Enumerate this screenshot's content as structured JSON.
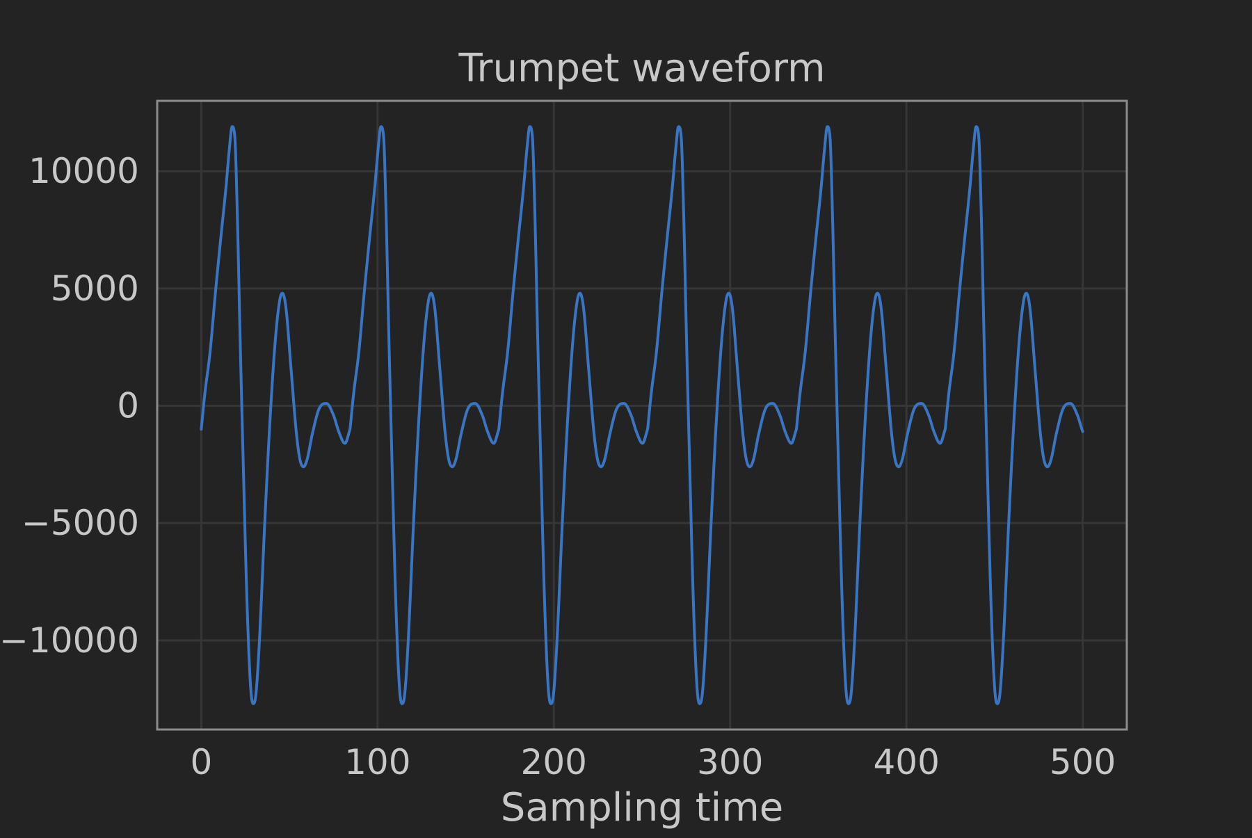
{
  "chart_data": {
    "type": "line",
    "title": "Trumpet waveform",
    "xlabel": "Sampling time",
    "ylabel": "",
    "xlim": [
      -25,
      525
    ],
    "ylim": [
      -13800,
      13000
    ],
    "grid": true,
    "legend": "none",
    "xticks": [
      0,
      100,
      200,
      300,
      400,
      500
    ],
    "yticks": [
      10000,
      5000,
      0,
      -5000,
      -10000
    ],
    "colors": {
      "background": "#232323",
      "frame": "#8c8c8c",
      "grid": "#363636",
      "text": "#c8c8c8",
      "line": "#3a75c4"
    },
    "series": [
      {
        "period": 84.4,
        "x_start": 0,
        "x_end": 500,
        "keypoints": [
          [
            0,
            -1000
          ],
          [
            2,
            500
          ],
          [
            5,
            2300
          ],
          [
            8,
            4800
          ],
          [
            11,
            7100
          ],
          [
            14,
            9300
          ],
          [
            16,
            11000
          ],
          [
            17.5,
            11900
          ],
          [
            19,
            11500
          ],
          [
            20.5,
            8000
          ],
          [
            22,
            3000
          ],
          [
            24,
            -3000
          ],
          [
            26,
            -8500
          ],
          [
            28,
            -12000
          ],
          [
            29.5,
            -12700
          ],
          [
            31,
            -12300
          ],
          [
            33,
            -10000
          ],
          [
            36,
            -5000
          ],
          [
            39,
            -600
          ],
          [
            42,
            2800
          ],
          [
            44.5,
            4500
          ],
          [
            46,
            4800
          ],
          [
            48,
            4200
          ],
          [
            51,
            1500
          ],
          [
            54,
            -1200
          ],
          [
            56,
            -2300
          ],
          [
            58,
            -2600
          ],
          [
            60,
            -2300
          ],
          [
            63,
            -1200
          ],
          [
            67,
            -100
          ],
          [
            71,
            100
          ],
          [
            75,
            -400
          ],
          [
            78,
            -1100
          ],
          [
            81.5,
            -1600
          ],
          [
            84.4,
            -1000
          ]
        ]
      }
    ]
  }
}
